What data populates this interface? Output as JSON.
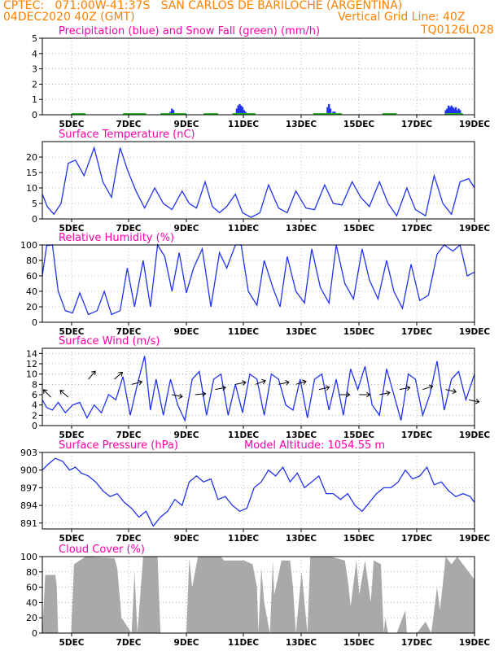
{
  "header": {
    "line1_left": "CPTEC:   071:00W-41:37S   SAN CARLOS DE BARILOCHE (ARGENTINA)",
    "line2_left": "04DEC2020 40Z (GMT)",
    "line2_right": "Vertical Grid Line: 40Z",
    "code": "TQ0126L028"
  },
  "colors": {
    "header": "#ff8000",
    "title": "#ff00aa",
    "series": "#2233ee",
    "snow": "#22bb22",
    "cloud": "#a9a9a9",
    "grid": "#888888"
  },
  "chart_data": [
    {
      "type": "bar",
      "title": "Precipitation (blue) and Snow Fall (green) (mm/h)",
      "x_range": [
        4.0,
        19.0
      ],
      "x_ticks": [
        "5DEC",
        "7DEC",
        "9DEC",
        "11DEC",
        "13DEC",
        "15DEC",
        "17DEC",
        "19DEC"
      ],
      "ylim": [
        0,
        5
      ],
      "y_ticks": [
        0,
        1,
        2,
        3,
        4,
        5
      ],
      "series": [
        {
          "name": "Precipitation",
          "x": [
            8.45,
            8.5,
            8.55,
            10.75,
            10.8,
            10.85,
            10.9,
            10.95,
            11.0,
            11.05,
            13.9,
            13.95,
            14.0,
            14.1,
            14.15,
            18.0,
            18.05,
            18.1,
            18.15,
            18.2,
            18.25,
            18.3,
            18.35,
            18.4,
            18.45,
            18.5
          ],
          "values": [
            0.2,
            0.4,
            0.3,
            0.4,
            0.6,
            0.7,
            0.6,
            0.5,
            0.3,
            0.2,
            0.5,
            0.7,
            0.4,
            0.2,
            0.2,
            0.3,
            0.4,
            0.6,
            0.5,
            0.6,
            0.5,
            0.4,
            0.5,
            0.3,
            0.4,
            0.3
          ]
        },
        {
          "name": "Snow Fall",
          "segments": [
            [
              5.0,
              5.5
            ],
            [
              6.8,
              7.6
            ],
            [
              8.1,
              9.0
            ],
            [
              9.6,
              10.1
            ],
            [
              10.6,
              11.4
            ],
            [
              13.4,
              14.4
            ],
            [
              15.8,
              16.3
            ],
            [
              18.0,
              18.6
            ]
          ]
        }
      ]
    },
    {
      "type": "line",
      "title": "Surface Temperature (nC)",
      "x_range": [
        4.0,
        19.0
      ],
      "x_ticks": [
        "5DEC",
        "7DEC",
        "9DEC",
        "11DEC",
        "13DEC",
        "15DEC",
        "17DEC",
        "19DEC"
      ],
      "ylim": [
        0,
        25
      ],
      "y_ticks": [
        0,
        5,
        10,
        15,
        20
      ],
      "x": [
        4.0,
        4.17,
        4.4,
        4.65,
        4.9,
        5.15,
        5.45,
        5.8,
        6.1,
        6.4,
        6.7,
        6.95,
        7.25,
        7.55,
        7.9,
        8.2,
        8.5,
        8.85,
        9.1,
        9.35,
        9.65,
        9.9,
        10.15,
        10.4,
        10.7,
        10.95,
        11.25,
        11.55,
        11.85,
        12.2,
        12.5,
        12.8,
        13.15,
        13.45,
        13.8,
        14.1,
        14.4,
        14.75,
        15.05,
        15.35,
        15.7,
        16.0,
        16.3,
        16.65,
        16.95,
        17.3,
        17.6,
        17.9,
        18.2,
        18.5,
        18.8,
        19.0
      ],
      "values": [
        8,
        4,
        1.5,
        5,
        18,
        19,
        14,
        23,
        12,
        7,
        23,
        16,
        9,
        3.5,
        10,
        5,
        3,
        9,
        5,
        3.5,
        12,
        4,
        2,
        4,
        8,
        2,
        0.5,
        2,
        11,
        3.5,
        2,
        9,
        3.5,
        3,
        11,
        5,
        4.5,
        12,
        7,
        4,
        12,
        5,
        1,
        10,
        3,
        1,
        14,
        5,
        1.5,
        12,
        13,
        10
      ]
    },
    {
      "type": "line",
      "title": "Relative Humidity (%)",
      "x_range": [
        4.0,
        19.0
      ],
      "x_ticks": [
        "5DEC",
        "7DEC",
        "9DEC",
        "11DEC",
        "13DEC",
        "15DEC",
        "17DEC",
        "19DEC"
      ],
      "ylim": [
        0,
        100
      ],
      "y_ticks": [
        0,
        20,
        40,
        60,
        80,
        100
      ],
      "x": [
        4.0,
        4.15,
        4.35,
        4.55,
        4.8,
        5.05,
        5.3,
        5.6,
        5.9,
        6.15,
        6.4,
        6.7,
        6.95,
        7.2,
        7.5,
        7.75,
        8.0,
        8.25,
        8.5,
        8.75,
        9.0,
        9.25,
        9.55,
        9.85,
        10.15,
        10.4,
        10.7,
        10.9,
        11.15,
        11.45,
        11.7,
        12.0,
        12.25,
        12.5,
        12.8,
        13.1,
        13.35,
        13.65,
        13.95,
        14.2,
        14.5,
        14.8,
        15.1,
        15.35,
        15.65,
        15.95,
        16.2,
        16.5,
        16.8,
        17.1,
        17.4,
        17.7,
        17.95,
        18.25,
        18.5,
        18.75,
        19.0
      ],
      "values": [
        60,
        99,
        100,
        40,
        15,
        12,
        38,
        10,
        15,
        40,
        10,
        15,
        70,
        20,
        80,
        20,
        100,
        85,
        40,
        90,
        38,
        70,
        95,
        20,
        90,
        70,
        100,
        100,
        40,
        22,
        80,
        45,
        20,
        85,
        40,
        25,
        95,
        45,
        25,
        100,
        50,
        30,
        95,
        55,
        30,
        80,
        40,
        18,
        75,
        28,
        35,
        88,
        100,
        92,
        100,
        60,
        65
      ]
    },
    {
      "type": "line",
      "title": "Surface Wind (m/s)",
      "x_range": [
        4.0,
        19.0
      ],
      "x_ticks": [
        "5DEC",
        "7DEC",
        "9DEC",
        "11DEC",
        "13DEC",
        "15DEC",
        "17DEC",
        "19DEC"
      ],
      "ylim": [
        0,
        15
      ],
      "y_ticks": [
        0,
        2,
        4,
        6,
        8,
        10,
        12,
        14
      ],
      "x": [
        4.0,
        4.15,
        4.35,
        4.55,
        4.8,
        5.05,
        5.3,
        5.55,
        5.8,
        6.05,
        6.3,
        6.55,
        6.8,
        7.05,
        7.3,
        7.55,
        7.75,
        7.95,
        8.2,
        8.45,
        8.7,
        8.95,
        9.2,
        9.45,
        9.7,
        9.95,
        10.2,
        10.45,
        10.7,
        10.95,
        11.2,
        11.45,
        11.7,
        11.95,
        12.2,
        12.45,
        12.7,
        12.95,
        13.2,
        13.45,
        13.7,
        13.95,
        14.2,
        14.45,
        14.7,
        14.95,
        15.2,
        15.45,
        15.7,
        15.95,
        16.2,
        16.45,
        16.7,
        16.95,
        17.2,
        17.45,
        17.7,
        17.95,
        18.2,
        18.45,
        18.7,
        19.0
      ],
      "values": [
        5,
        3.5,
        3,
        4.5,
        2.5,
        4,
        4.5,
        1.5,
        4,
        2.5,
        6,
        5,
        9.5,
        2,
        8,
        13.5,
        3,
        9,
        2,
        9,
        4,
        1,
        9,
        10.5,
        2,
        9,
        10,
        2,
        8,
        2.5,
        10,
        9,
        2,
        10,
        9,
        4,
        3,
        9,
        1.5,
        9,
        10,
        3,
        9,
        2,
        11,
        7,
        11.5,
        4,
        2,
        11,
        6,
        1,
        10,
        9,
        2,
        6,
        12.5,
        3,
        9,
        10.5,
        5,
        10
      ]
    },
    {
      "type": "line",
      "title": "Surface Pressure (hPa)",
      "annotation": "Model Altitude: 1054.55 m",
      "x_range": [
        4.0,
        19.0
      ],
      "x_ticks": [
        "5DEC",
        "7DEC",
        "9DEC",
        "11DEC",
        "13DEC",
        "15DEC",
        "17DEC",
        "19DEC"
      ],
      "ylim": [
        890,
        903
      ],
      "y_ticks": [
        891,
        894,
        897,
        900,
        903
      ],
      "x": [
        4.0,
        4.2,
        4.45,
        4.7,
        4.95,
        5.15,
        5.35,
        5.6,
        5.85,
        6.1,
        6.35,
        6.6,
        6.85,
        7.1,
        7.35,
        7.6,
        7.85,
        8.1,
        8.35,
        8.6,
        8.85,
        9.1,
        9.35,
        9.6,
        9.85,
        10.1,
        10.35,
        10.6,
        10.85,
        11.1,
        11.35,
        11.6,
        11.85,
        12.1,
        12.35,
        12.6,
        12.85,
        13.1,
        13.35,
        13.6,
        13.85,
        14.1,
        14.35,
        14.6,
        14.85,
        15.1,
        15.35,
        15.6,
        15.85,
        16.1,
        16.35,
        16.6,
        16.85,
        17.1,
        17.35,
        17.6,
        17.85,
        18.1,
        18.35,
        18.6,
        18.85,
        19.0
      ],
      "values": [
        900,
        901,
        902,
        901.5,
        900,
        900.5,
        899.5,
        899,
        898,
        896.5,
        895.5,
        896,
        894.5,
        893.5,
        892,
        893,
        890.5,
        892,
        893,
        895,
        894,
        898,
        899,
        898,
        898.5,
        895,
        895.5,
        894,
        893,
        893.5,
        897,
        898,
        900,
        899,
        900.5,
        898,
        899.5,
        897,
        898,
        899,
        896,
        896,
        895,
        896,
        894,
        893,
        894.5,
        896,
        897,
        897,
        898,
        900,
        898.5,
        899,
        900.5,
        897.5,
        898,
        896.5,
        895.5,
        896,
        895.5,
        894.5
      ]
    },
    {
      "type": "area",
      "title": "Cloud Cover (%)",
      "x_range": [
        4.0,
        19.0
      ],
      "x_ticks": [
        "5DEC",
        "7DEC",
        "9DEC",
        "11DEC",
        "13DEC",
        "15DEC",
        "17DEC",
        "19DEC"
      ],
      "ylim": [
        0,
        100
      ],
      "y_ticks": [
        0,
        20,
        40,
        60,
        80,
        100
      ],
      "x": [
        4.0,
        4.1,
        4.45,
        4.5,
        4.55,
        5.0,
        5.1,
        5.5,
        6.5,
        6.6,
        6.75,
        7.1,
        7.2,
        7.3,
        7.5,
        8.0,
        8.1,
        9.0,
        9.1,
        9.2,
        9.4,
        10.2,
        10.3,
        11.0,
        11.3,
        11.45,
        11.5,
        11.6,
        11.7,
        11.9,
        12.0,
        12.05,
        12.3,
        12.6,
        12.7,
        12.8,
        13.0,
        13.2,
        13.3,
        14.0,
        14.5,
        14.6,
        14.7,
        14.9,
        15.0,
        15.2,
        15.4,
        15.5,
        15.75,
        15.85,
        15.9,
        16.0,
        16.3,
        16.6,
        16.65,
        17.0,
        17.3,
        17.5,
        17.7,
        17.8,
        18.0,
        18.2,
        18.4,
        18.5,
        19.0
      ],
      "values": [
        0,
        76,
        76,
        62,
        0,
        0,
        90,
        100,
        98,
        85,
        20,
        0,
        80,
        0,
        100,
        100,
        0,
        0,
        98,
        60,
        100,
        100,
        95,
        95,
        90,
        60,
        0,
        85,
        40,
        0,
        95,
        50,
        95,
        95,
        60,
        0,
        80,
        0,
        100,
        100,
        95,
        70,
        35,
        95,
        50,
        95,
        40,
        95,
        90,
        0,
        20,
        0,
        0,
        30,
        0,
        0,
        15,
        0,
        60,
        30,
        100,
        90,
        100,
        95,
        70
      ]
    }
  ]
}
